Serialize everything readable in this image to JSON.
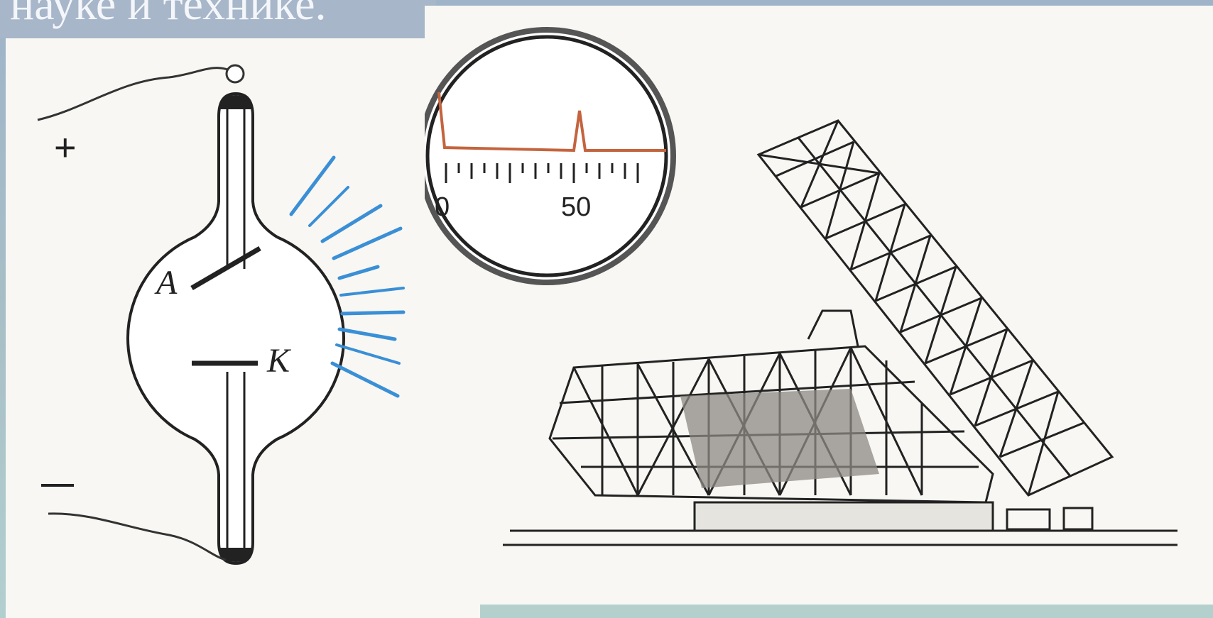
{
  "slide": {
    "title": "науке и технике."
  },
  "tube_diagram": {
    "anode_label": "A",
    "cathode_label": "K",
    "plus_sign": "+",
    "minus_sign": "–"
  },
  "spectrum_gauge": {
    "scale_left_label": "0",
    "scale_mid_label": "50",
    "trace_color": "#c4643e"
  },
  "colors": {
    "rays": "#3a8fd6",
    "ink": "#222222"
  }
}
